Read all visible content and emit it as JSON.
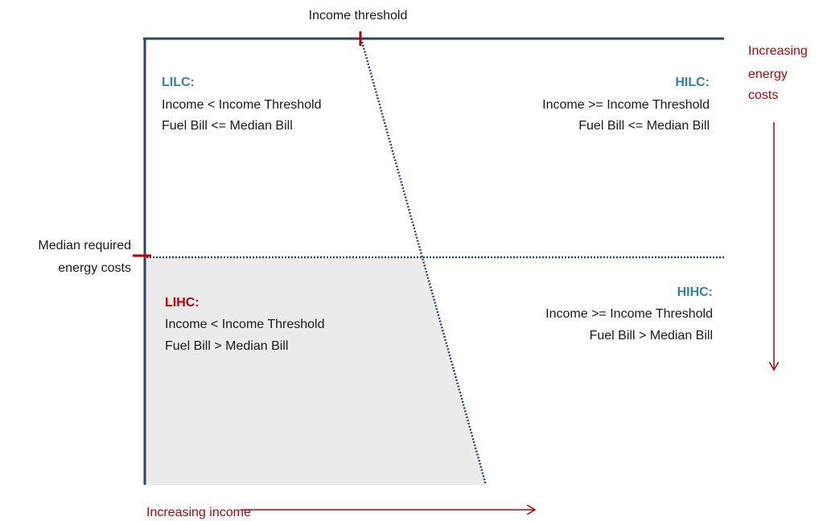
{
  "labels": {
    "income_threshold": "Income threshold",
    "median_costs": [
      "Median required",
      "energy costs"
    ],
    "increasing_costs": [
      "Increasing",
      "energy",
      "costs"
    ],
    "increasing_income": "Increasing income"
  },
  "quadrants": [
    {
      "title": "LILC:",
      "lines": [
        "Income < Income Threshold",
        "Fuel Bill <= Median Bill"
      ]
    },
    {
      "title": "HILC:",
      "lines": [
        "Income >= Income Threshold",
        "Fuel Bill <= Median Bill"
      ]
    },
    {
      "title": "LIHC:",
      "lines": [
        "Income < Income Threshold",
        "Fuel Bill > Median Bill"
      ]
    },
    {
      "title": "HIHC:",
      "lines": [
        "Income >= Income Threshold",
        "Fuel Bill > Median Bill"
      ]
    }
  ]
}
